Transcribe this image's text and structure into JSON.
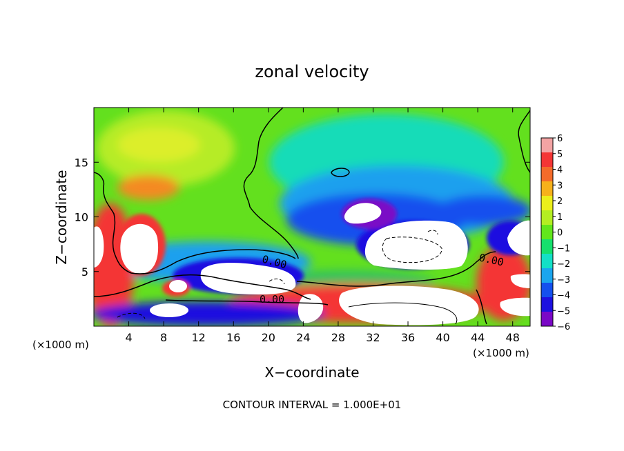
{
  "chart_data": {
    "type": "heatmap",
    "title": "zonal velocity",
    "xlabel": "X−coordinate",
    "ylabel": "Z−coordinate",
    "x_unit_left": "(×1000 m)",
    "x_unit_right": "(×1000 m)",
    "xlim": [
      0,
      50
    ],
    "ylim": [
      0,
      20
    ],
    "x_ticks": [
      4,
      8,
      12,
      16,
      20,
      24,
      28,
      32,
      36,
      40,
      44,
      48
    ],
    "y_ticks": [
      5,
      10,
      15
    ],
    "colorbar": {
      "ticks": [
        6,
        5,
        4,
        3,
        2,
        1,
        0,
        -1,
        -2,
        -3,
        -4,
        -5,
        -6
      ],
      "colors": [
        "#f3a3a3",
        "#f43535",
        "#f46b2a",
        "#f6b11b",
        "#ecef1a",
        "#b4ee22",
        "#62e61b",
        "#15e06d",
        "#13e0c6",
        "#1aa5ee",
        "#1450ee",
        "#1d10e0",
        "#7a08c6"
      ]
    },
    "contour_labels": [
      "0.00",
      "0.00",
      "0.00"
    ],
    "footer": "CONTOUR INTERVAL = 1.000E+01"
  }
}
